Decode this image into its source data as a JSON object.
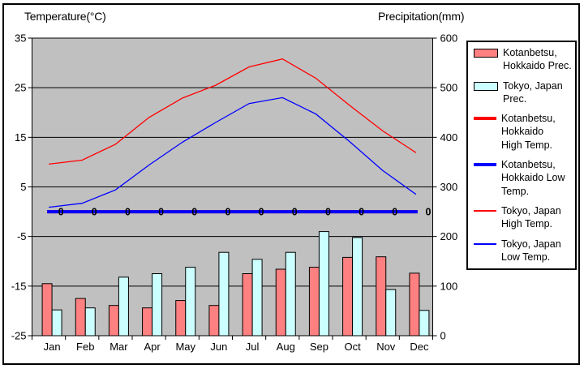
{
  "legend": {
    "items": [
      {
        "id": "kotanbetsu-prec",
        "type": "box",
        "color": "#FF8080",
        "label": "Kotanbetsu,\nHokkaido Prec."
      },
      {
        "id": "tokyo-prec",
        "type": "box",
        "color": "#CCFFFF",
        "label": "Tokyo, Japan\nPrec."
      },
      {
        "id": "kotanbetsu-high-temp",
        "type": "line-thick",
        "color": "#FF0000",
        "label": "Kotanbetsu,\nHokkaido\nHigh Temp."
      },
      {
        "id": "kotanbetsu-low-temp",
        "type": "line-thick",
        "color": "#0000FF",
        "label": "Kotanbetsu,\nHokkaido Low\nTemp."
      },
      {
        "id": "tokyo-high-temp",
        "type": "line-thin",
        "color": "#FF0000",
        "label": "Tokyo, Japan\nHigh Temp."
      },
      {
        "id": "tokyo-low-temp",
        "type": "line-thin",
        "color": "#0000FF",
        "label": "Tokyo, Japan\nLow Temp."
      }
    ]
  },
  "chart_data": {
    "type": "combo bar + line climate chart",
    "categories": [
      "Jan",
      "Feb",
      "Mar",
      "Apr",
      "May",
      "Jun",
      "Jul",
      "Aug",
      "Sep",
      "Oct",
      "Nov",
      "Dec"
    ],
    "temp_axis": {
      "label": "Temperature(°C)",
      "min": -25,
      "max": 35,
      "ticks": [
        35,
        25,
        15,
        5,
        -5,
        -15,
        -25
      ],
      "side": "left"
    },
    "precip_axis": {
      "label": "Precipitation(mm)",
      "min": 0,
      "max": 600,
      "ticks": [
        600,
        500,
        400,
        300,
        200,
        100,
        0
      ],
      "side": "right"
    },
    "plot_bg": "#C0C0C0",
    "grid": "horizontal black lines every 10 degC / 100 mm",
    "legend_position": "right",
    "series": [
      {
        "name": "Kotanbetsu, Hokkaido Prec.",
        "type": "bar",
        "axis": "precip",
        "color": "#FF8080",
        "values": [
          105,
          75,
          61,
          56,
          71,
          61,
          125,
          134,
          138,
          158,
          159,
          126
        ]
      },
      {
        "name": "Tokyo, Japan Prec.",
        "type": "bar",
        "axis": "precip",
        "color": "#CCFFFF",
        "values": [
          52,
          56,
          118,
          125,
          138,
          168,
          154,
          168,
          210,
          198,
          93,
          51
        ]
      },
      {
        "name": "Kotanbetsu, Hokkaido High Temp.",
        "type": "line",
        "axis": "temp",
        "color": "#FF0000",
        "width": "thick",
        "values": [
          0,
          0,
          0,
          0,
          0,
          0,
          0,
          0,
          0,
          0,
          0,
          0
        ]
      },
      {
        "name": "Kotanbetsu, Hokkaido Low Temp.",
        "type": "line",
        "axis": "temp",
        "color": "#0000FF",
        "width": "thick",
        "show_data_labels": true,
        "values": [
          0,
          0,
          0,
          0,
          0,
          0,
          0,
          0,
          0,
          0,
          0,
          0
        ]
      },
      {
        "name": "Tokyo, Japan High Temp.",
        "type": "line",
        "axis": "temp",
        "color": "#FF0000",
        "width": "thin",
        "values": [
          9.6,
          10.4,
          13.6,
          19.0,
          22.9,
          25.5,
          29.2,
          30.8,
          26.9,
          21.5,
          16.3,
          11.9
        ]
      },
      {
        "name": "Tokyo, Japan Low Temp.",
        "type": "line",
        "axis": "temp",
        "color": "#0000FF",
        "width": "thin",
        "values": [
          0.9,
          1.7,
          4.4,
          9.4,
          14.0,
          18.0,
          21.8,
          23.0,
          19.7,
          14.2,
          8.3,
          3.5
        ]
      }
    ]
  }
}
